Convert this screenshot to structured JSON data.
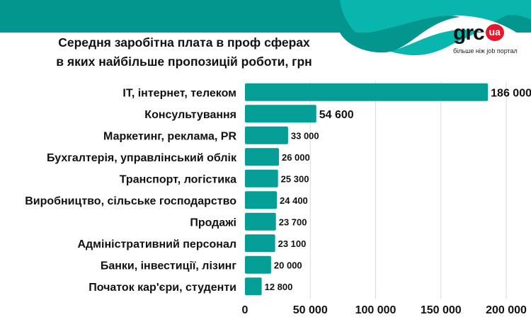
{
  "header": {
    "title_line1": "Середня заробітна плата в проф сферах",
    "title_line2": "в яких найбільше пропозицій роботи, грн",
    "logo_text": "grc",
    "logo_badge": "ua",
    "logo_tagline": "більше ніж job портал"
  },
  "colors": {
    "bar": "#049e96",
    "header_dark": "#03968e",
    "header_light": "#08b6ae",
    "grid": "#d9d9d9",
    "badge": "#e5182b"
  },
  "chart_data": {
    "type": "bar",
    "orientation": "horizontal",
    "title": "Середня заробітна плата в проф сферах в яких найбільше пропозицій роботи, грн",
    "categories": [
      "IT, інтернет, телеком",
      "Консультування",
      "Маркетинг, реклама, PR",
      "Бухгалтерія, управлінський облік",
      "Транспорт, логістика",
      "Виробництво, сільське господарство",
      "Продажі",
      "Адміністративний персонал",
      "Банки, інвестиції, лізинг",
      "Початок кар'єри, студенти"
    ],
    "values": [
      186000,
      54600,
      33000,
      26000,
      25300,
      24400,
      23700,
      23100,
      20000,
      12800
    ],
    "value_labels": [
      "186 000",
      "54 600",
      "33 000",
      "26 000",
      "25 300",
      "24 400",
      "23 700",
      "23 100",
      "20 000",
      "12 800"
    ],
    "xlim": [
      0,
      200000
    ],
    "xticks": [
      0,
      50000,
      100000,
      150000,
      200000
    ],
    "xtick_labels": [
      "0",
      "50 000",
      "100 000",
      "150 000",
      "200 000"
    ],
    "grid": true,
    "xlabel": "",
    "ylabel": ""
  }
}
